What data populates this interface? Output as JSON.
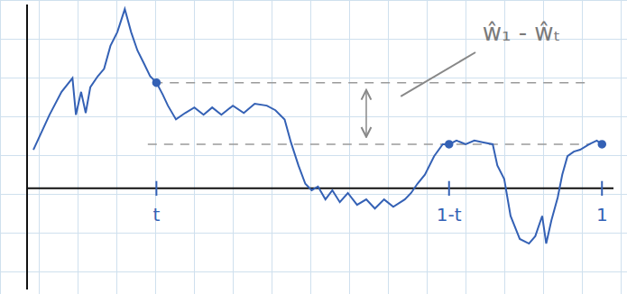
{
  "chart_data": {
    "type": "line",
    "color": "#3461b5",
    "marker": "none",
    "line_style": "solid",
    "tick_labels": "x",
    "xlim": [
      0,
      1.02
    ],
    "ylim": [
      -1.1,
      2.0
    ],
    "xticks": [
      {
        "value": 0.225,
        "label": "t"
      },
      {
        "value": 0.734,
        "label": "1-t"
      },
      {
        "value": 1,
        "label": "1"
      }
    ],
    "x": [
      0.011,
      0.039,
      0.06,
      0.079,
      0.085,
      0.094,
      0.102,
      0.11,
      0.123,
      0.134,
      0.145,
      0.157,
      0.17,
      0.181,
      0.192,
      0.204,
      0.214,
      0.225,
      0.236,
      0.245,
      0.259,
      0.275,
      0.291,
      0.307,
      0.322,
      0.338,
      0.358,
      0.377,
      0.396,
      0.417,
      0.432,
      0.448,
      0.459,
      0.472,
      0.484,
      0.495,
      0.506,
      0.519,
      0.531,
      0.544,
      0.558,
      0.574,
      0.59,
      0.605,
      0.621,
      0.637,
      0.657,
      0.668,
      0.679,
      0.692,
      0.708,
      0.723,
      0.734,
      0.747,
      0.763,
      0.778,
      0.794,
      0.81,
      0.818,
      0.83,
      0.841,
      0.857,
      0.873,
      0.884,
      0.896,
      0.903,
      0.912,
      0.923,
      0.931,
      0.94,
      0.951,
      0.962,
      0.978,
      0.991,
      1.0
    ],
    "values": [
      0.42,
      0.8,
      1.05,
      1.2,
      0.8,
      1.05,
      0.82,
      1.1,
      1.22,
      1.3,
      1.55,
      1.7,
      1.95,
      1.7,
      1.5,
      1.35,
      1.22,
      1.15,
      1.02,
      0.9,
      0.75,
      0.82,
      0.88,
      0.8,
      0.88,
      0.8,
      0.9,
      0.82,
      0.92,
      0.9,
      0.85,
      0.75,
      0.5,
      0.25,
      0.05,
      -0.02,
      0.02,
      -0.12,
      -0.02,
      -0.15,
      -0.05,
      -0.18,
      -0.12,
      -0.22,
      -0.12,
      -0.2,
      -0.12,
      -0.05,
      0.05,
      0.15,
      0.35,
      0.48,
      0.48,
      0.52,
      0.48,
      0.52,
      0.5,
      0.48,
      0.25,
      0.1,
      -0.3,
      -0.55,
      -0.6,
      -0.52,
      -0.3,
      -0.6,
      -0.35,
      -0.1,
      0.15,
      0.35,
      0.4,
      0.42,
      0.48,
      0.52,
      0.48
    ],
    "highlighted": [
      {
        "x": 0.225,
        "y": 1.15
      },
      {
        "x": 0.734,
        "y": 0.48
      },
      {
        "x": 1.0,
        "y": 0.48
      }
    ],
    "hlines": [
      {
        "y": 1.15,
        "x_from": 0.22,
        "x_to": 0.98
      },
      {
        "y": 0.48,
        "x_from": 0.21,
        "x_to": 0.98
      }
    ],
    "annotations": [
      {
        "text": "ŵ₁ - ŵₜ",
        "x": 0.86,
        "y": 1.7,
        "arrow_x": 0.59
      }
    ]
  }
}
